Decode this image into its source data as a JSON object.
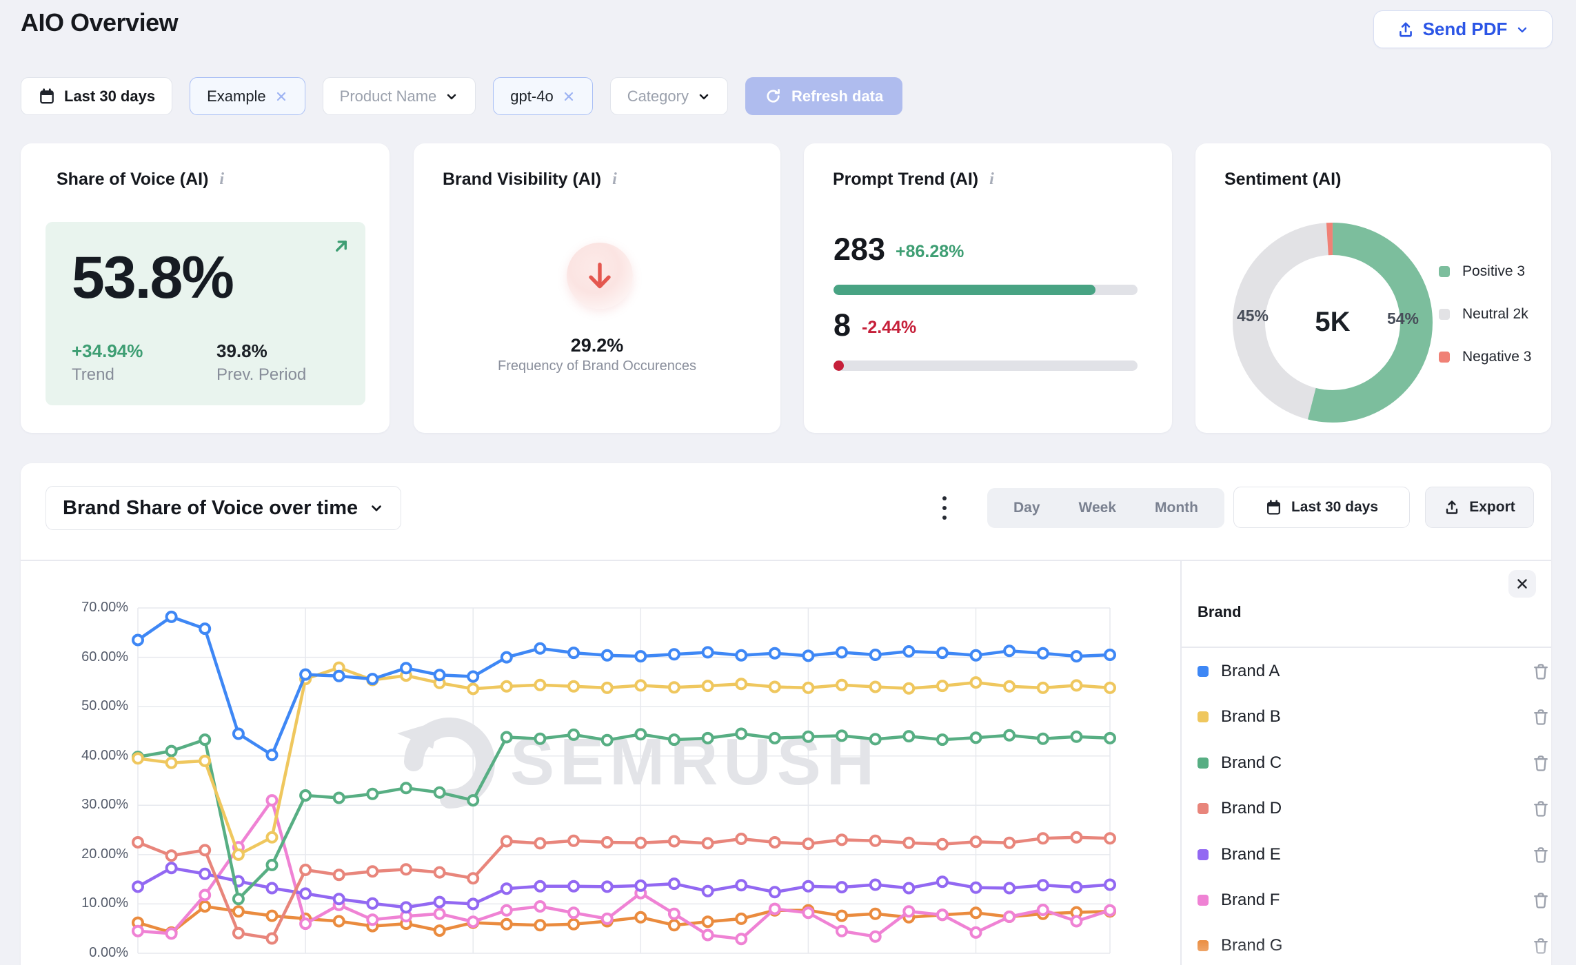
{
  "header": {
    "title": "AIO Overview",
    "send_pdf_label": "Send PDF"
  },
  "filter_bar": {
    "date_button": "Last 30 days",
    "tag_example": "Example",
    "dropdown_product": "Product Name",
    "tag_model": "gpt-4o",
    "dropdown_category": "Category",
    "refresh_button": "Refresh data"
  },
  "kpi_cards": {
    "share_of_voice": {
      "title": "Share of Voice (AI)",
      "value": "53.8%",
      "trend_value": "+34.94%",
      "trend_label": "Trend",
      "prev_value": "39.8%",
      "prev_label": "Prev. Period",
      "accent_color": "#3E9E73",
      "box_bg": "#E9F4EE"
    },
    "brand_visibility": {
      "title": "Brand Visibility (AI)",
      "value": "29.2%",
      "caption": "Frequency of Brand Occurences",
      "arrow_color": "#E4574F"
    },
    "prompt_trend": {
      "title": "Prompt Trend (AI)",
      "metrics": [
        {
          "value": "283",
          "change": "+86.28%",
          "progress_pct": 86.28,
          "bar_color": "#48A383",
          "change_color": "#3E9E73"
        },
        {
          "value": "8",
          "change": "-2.44%",
          "progress_pct": 2.44,
          "bar_color": "#C6203A",
          "change_color": "#C6203A"
        }
      ],
      "track_color": "#E1E2E7"
    },
    "sentiment": {
      "title": "Sentiment (AI)",
      "center_label": "5K",
      "slices": [
        {
          "name": "Positive",
          "pct": 54,
          "pct_label": "54%",
          "legend_text": "Positive 3",
          "color": "#7CBE9D"
        },
        {
          "name": "Neutral",
          "pct": 45,
          "pct_label": "45%",
          "legend_text": "Neutral 2k",
          "color": "#E2E2E5"
        },
        {
          "name": "Negative",
          "pct": 1,
          "pct_label": "",
          "legend_text": "Negative 3",
          "color": "#F08176"
        }
      ]
    }
  },
  "chart_section": {
    "title": "Brand Share of Voice over time",
    "granularity_options": [
      "Day",
      "Week",
      "Month"
    ],
    "date_button": "Last 30 days",
    "export_label": "Export",
    "watermark": "SEMRUSH",
    "legend_panel_header": "Brand"
  },
  "chart_data": {
    "type": "line",
    "title": "Brand Share of Voice over time",
    "x": [
      1,
      2,
      3,
      4,
      5,
      6,
      7,
      8,
      9,
      10,
      11,
      12,
      13,
      14,
      15,
      16,
      17,
      18,
      19,
      20,
      21,
      22,
      23,
      24,
      25,
      26,
      27,
      28,
      29,
      30
    ],
    "x_unit": "day (Last 30 days)",
    "ylim": [
      0,
      70
    ],
    "y_ticks": [
      "70.00%",
      "60.00%",
      "50.00%",
      "40.00%",
      "30.00%",
      "20.00%",
      "10.00%",
      "0.00%"
    ],
    "grid": true,
    "legend_position": "right",
    "series": [
      {
        "name": "Brand A",
        "color": "#3E87F5",
        "values": [
          63.5,
          68.2,
          65.8,
          44.5,
          40.2,
          56.5,
          56.2,
          55.6,
          57.8,
          56.4,
          56.1,
          60.0,
          61.8,
          60.9,
          60.4,
          60.2,
          60.6,
          61.0,
          60.4,
          60.8,
          60.3,
          61.0,
          60.5,
          61.2,
          60.9,
          60.4,
          61.3,
          60.8,
          60.2,
          60.5
        ]
      },
      {
        "name": "Brand B",
        "color": "#EFC75E",
        "values": [
          39.5,
          38.6,
          39.0,
          20.0,
          23.5,
          55.6,
          57.9,
          55.4,
          56.3,
          54.8,
          53.6,
          54.1,
          54.4,
          54.1,
          53.8,
          54.3,
          53.9,
          54.2,
          54.6,
          54.0,
          53.8,
          54.4,
          54.0,
          53.7,
          54.2,
          54.9,
          54.1,
          53.8,
          54.3,
          53.8
        ]
      },
      {
        "name": "Brand C",
        "color": "#57AE83",
        "values": [
          39.8,
          41.0,
          43.3,
          11.0,
          17.9,
          32.0,
          31.5,
          32.3,
          33.5,
          32.6,
          31.0,
          43.8,
          43.5,
          44.3,
          43.2,
          44.4,
          43.3,
          43.6,
          44.5,
          43.6,
          43.9,
          44.1,
          43.4,
          44.0,
          43.3,
          43.7,
          44.2,
          43.5,
          43.9,
          43.6
        ]
      },
      {
        "name": "Brand D",
        "color": "#E8857B",
        "values": [
          22.5,
          19.8,
          20.9,
          4.1,
          3.0,
          16.9,
          15.9,
          16.6,
          17.0,
          16.4,
          15.2,
          22.7,
          22.3,
          22.8,
          22.5,
          22.4,
          22.7,
          22.3,
          23.2,
          22.5,
          22.2,
          23.0,
          22.8,
          22.4,
          22.1,
          22.6,
          22.4,
          23.3,
          23.5,
          23.3
        ]
      },
      {
        "name": "Brand E",
        "color": "#9268F2",
        "values": [
          13.5,
          17.3,
          16.1,
          14.6,
          13.2,
          12.1,
          11.0,
          10.1,
          9.3,
          10.4,
          10.0,
          13.1,
          13.6,
          13.6,
          13.5,
          13.7,
          14.1,
          12.6,
          13.8,
          12.4,
          13.6,
          13.4,
          13.9,
          13.2,
          14.5,
          13.3,
          13.2,
          13.8,
          13.4,
          13.9
        ]
      },
      {
        "name": "Brand F",
        "color": "#EF82D4",
        "values": [
          4.5,
          4.0,
          11.8,
          21.5,
          31.0,
          6.0,
          9.8,
          6.8,
          7.5,
          8.0,
          6.4,
          8.7,
          9.5,
          8.2,
          7.0,
          12.2,
          8.0,
          3.7,
          2.9,
          9.0,
          8.2,
          4.5,
          3.4,
          8.5,
          7.8,
          4.2,
          7.4,
          8.8,
          6.5,
          8.7
        ]
      },
      {
        "name": "Brand G",
        "color": "#EA8B3E",
        "values": [
          6.2,
          4.2,
          9.5,
          8.5,
          7.6,
          7.0,
          6.5,
          5.5,
          6.0,
          4.6,
          6.2,
          5.9,
          5.7,
          5.9,
          6.5,
          7.3,
          5.7,
          6.4,
          7.0,
          8.7,
          8.7,
          7.6,
          8.0,
          7.3,
          7.8,
          8.2,
          7.4,
          8.0,
          8.3,
          8.5
        ]
      }
    ]
  }
}
